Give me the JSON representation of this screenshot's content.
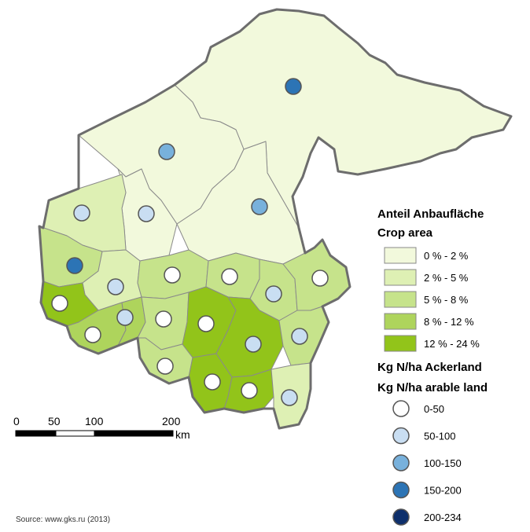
{
  "legend_crop": {
    "title_de": "Anteil Anbaufläche",
    "title_en": "Crop area",
    "classes": [
      {
        "label": "0 % - 2 %",
        "color": "#f2f9dc"
      },
      {
        "label": "2 % - 5 %",
        "color": "#def0b4"
      },
      {
        "label": "5 % - 8 %",
        "color": "#c6e38b"
      },
      {
        "label": "8 % - 12 %",
        "color": "#aed45c"
      },
      {
        "label": "12 % - 24 %",
        "color": "#92c41a"
      }
    ]
  },
  "legend_nitrogen": {
    "title_de": "Kg N/ha Ackerland",
    "title_en": "Kg N/ha arable land",
    "classes": [
      {
        "label": "0-50",
        "color": "#ffffff"
      },
      {
        "label": "50-100",
        "color": "#c9def2"
      },
      {
        "label": "100-150",
        "color": "#78b1dc"
      },
      {
        "label": "150-200",
        "color": "#2c74b5"
      },
      {
        "label": "200-234",
        "color": "#0d2f6b"
      }
    ]
  },
  "scale_bar": {
    "ticks": [
      "0",
      "50",
      "100",
      "200"
    ],
    "unit": "km"
  },
  "source": "Source: www.gks.ru (2013)",
  "colors": {
    "border": "#6d6d6d",
    "inner_border": "#8a8a8a",
    "dot_outline": "#555555"
  }
}
